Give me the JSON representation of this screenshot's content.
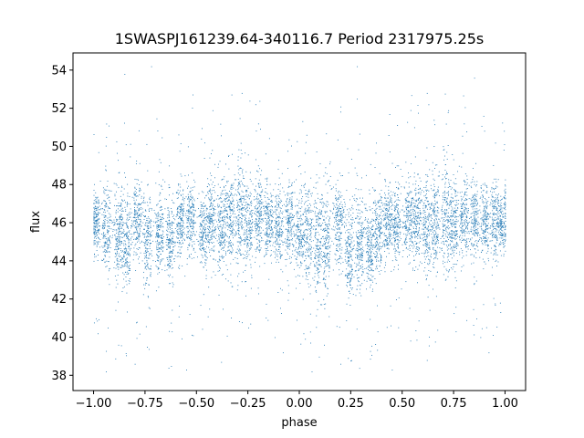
{
  "chart_data": {
    "type": "scatter",
    "title": "1SWASPJ161239.64-340116.7 Period 2317975.25s",
    "xlabel": "phase",
    "ylabel": "flux",
    "xlim": [
      -1.1,
      1.1
    ],
    "ylim": [
      37.2,
      54.9
    ],
    "xticks": [
      -1.0,
      -0.75,
      -0.5,
      -0.25,
      0.0,
      0.25,
      0.5,
      0.75,
      1.0
    ],
    "xtick_labels": [
      "−1.00",
      "−0.75",
      "−0.50",
      "−0.25",
      "0.00",
      "0.25",
      "0.50",
      "0.75",
      "1.00"
    ],
    "yticks": [
      38,
      40,
      42,
      44,
      46,
      48,
      50,
      52,
      54
    ],
    "ytick_labels": [
      "38",
      "40",
      "42",
      "44",
      "46",
      "48",
      "50",
      "52",
      "54"
    ],
    "grid": false,
    "legend": "none",
    "marker_color": "#1f77b4",
    "phase_range": [
      -1.0,
      1.0
    ],
    "flux_median": 46.0,
    "flux_typical_range": [
      43.5,
      48.5
    ],
    "flux_extremes": [
      38.1,
      54.2
    ],
    "series": [
      {
        "visits": [
          {
            "phase": -0.99,
            "mean": 46.0,
            "spread": 0.8
          },
          {
            "phase": -0.94,
            "mean": 45.7,
            "spread": 1.2
          },
          {
            "phase": -0.88,
            "mean": 45.2,
            "spread": 1.3
          },
          {
            "phase": -0.84,
            "mean": 44.8,
            "spread": 1.2
          },
          {
            "phase": -0.79,
            "mean": 46.2,
            "spread": 1.0
          },
          {
            "phase": -0.74,
            "mean": 44.9,
            "spread": 1.2
          },
          {
            "phase": -0.68,
            "mean": 45.4,
            "spread": 1.0
          },
          {
            "phase": -0.63,
            "mean": 44.8,
            "spread": 1.0
          },
          {
            "phase": -0.58,
            "mean": 46.0,
            "spread": 1.0
          },
          {
            "phase": -0.53,
            "mean": 46.3,
            "spread": 0.9
          },
          {
            "phase": -0.47,
            "mean": 45.5,
            "spread": 1.0
          },
          {
            "phase": -0.43,
            "mean": 46.2,
            "spread": 1.0
          },
          {
            "phase": -0.38,
            "mean": 45.8,
            "spread": 1.2
          },
          {
            "phase": -0.34,
            "mean": 46.4,
            "spread": 1.2
          },
          {
            "phase": -0.29,
            "mean": 46.4,
            "spread": 1.5
          },
          {
            "phase": -0.25,
            "mean": 46.0,
            "spread": 1.1
          },
          {
            "phase": -0.2,
            "mean": 46.6,
            "spread": 1.2
          },
          {
            "phase": -0.15,
            "mean": 46.2,
            "spread": 1.0
          },
          {
            "phase": -0.1,
            "mean": 45.8,
            "spread": 1.0
          },
          {
            "phase": -0.05,
            "mean": 46.2,
            "spread": 1.0
          },
          {
            "phase": 0.0,
            "mean": 45.4,
            "spread": 1.0
          },
          {
            "phase": 0.04,
            "mean": 45.5,
            "spread": 1.3
          },
          {
            "phase": 0.09,
            "mean": 44.7,
            "spread": 1.4
          },
          {
            "phase": 0.13,
            "mean": 44.9,
            "spread": 1.3
          },
          {
            "phase": 0.19,
            "mean": 46.1,
            "spread": 1.1
          },
          {
            "phase": 0.24,
            "mean": 44.4,
            "spread": 1.2
          },
          {
            "phase": 0.29,
            "mean": 44.6,
            "spread": 1.1
          },
          {
            "phase": 0.34,
            "mean": 44.5,
            "spread": 1.0
          },
          {
            "phase": 0.38,
            "mean": 45.4,
            "spread": 1.0
          },
          {
            "phase": 0.43,
            "mean": 46.0,
            "spread": 1.0
          },
          {
            "phase": 0.47,
            "mean": 45.8,
            "spread": 1.0
          },
          {
            "phase": 0.53,
            "mean": 46.2,
            "spread": 1.0
          },
          {
            "phase": 0.57,
            "mean": 46.1,
            "spread": 1.1
          },
          {
            "phase": 0.62,
            "mean": 45.8,
            "spread": 1.4
          },
          {
            "phase": 0.66,
            "mean": 46.1,
            "spread": 1.3
          },
          {
            "phase": 0.71,
            "mean": 46.4,
            "spread": 1.5
          },
          {
            "phase": 0.75,
            "mean": 46.0,
            "spread": 1.2
          },
          {
            "phase": 0.8,
            "mean": 46.3,
            "spread": 1.1
          },
          {
            "phase": 0.85,
            "mean": 46.3,
            "spread": 1.0
          },
          {
            "phase": 0.9,
            "mean": 46.0,
            "spread": 0.9
          },
          {
            "phase": 0.95,
            "mean": 46.2,
            "spread": 1.0
          },
          {
            "phase": 0.99,
            "mean": 46.0,
            "spread": 0.8
          }
        ],
        "outliers": [
          {
            "x": -0.72,
            "y": 54.2
          },
          {
            "x": 0.28,
            "y": 54.2
          },
          {
            "x": -0.85,
            "y": 53.8
          },
          {
            "x": 0.85,
            "y": 53.6
          },
          {
            "x": -0.28,
            "y": 52.8
          },
          {
            "x": 0.62,
            "y": 52.8
          },
          {
            "x": 0.28,
            "y": 52.5
          },
          {
            "x": -0.94,
            "y": 38.2
          },
          {
            "x": 0.06,
            "y": 38.2
          },
          {
            "x": -0.55,
            "y": 38.3
          },
          {
            "x": 0.45,
            "y": 38.3
          },
          {
            "x": -0.8,
            "y": 38.6
          },
          {
            "x": 0.2,
            "y": 38.6
          },
          {
            "x": -0.38,
            "y": 38.7
          },
          {
            "x": 0.62,
            "y": 38.8
          },
          {
            "x": -0.88,
            "y": 39.6
          },
          {
            "x": 0.12,
            "y": 39.6
          },
          {
            "x": -0.62,
            "y": 40.3
          },
          {
            "x": 0.38,
            "y": 40.3
          },
          {
            "x": -0.12,
            "y": 40.0
          },
          {
            "x": 0.88,
            "y": 40.0
          },
          {
            "x": -0.2,
            "y": 51.2
          },
          {
            "x": 0.8,
            "y": 51.2
          },
          {
            "x": -0.08,
            "y": 39.2
          },
          {
            "x": 0.92,
            "y": 39.2
          },
          {
            "x": -0.98,
            "y": 40.2
          },
          {
            "x": 0.02,
            "y": 40.2
          }
        ]
      }
    ]
  }
}
